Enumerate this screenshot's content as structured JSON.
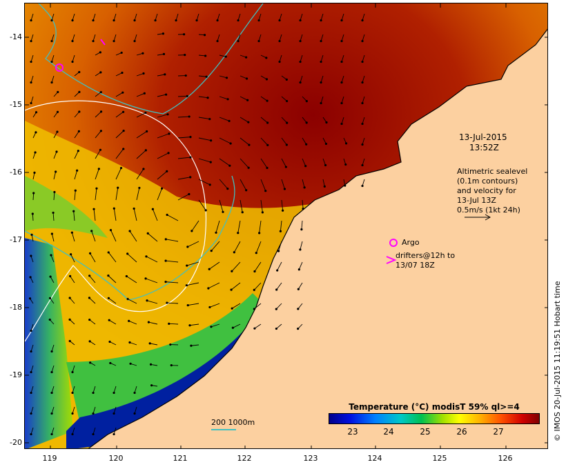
{
  "map": {
    "y_axis_labels": [
      "-14",
      "-15",
      "-16",
      "-17",
      "-18",
      "-19",
      "-20"
    ],
    "x_axis_labels": [
      "119",
      "120",
      "121",
      "122",
      "123",
      "124",
      "125",
      "126"
    ],
    "colors": {
      "land": "#fcd0a0",
      "coast": "#000000",
      "isobath": "#40c0c0",
      "contour": "#ffffff",
      "argo": "#ff00ff",
      "arrow": "#000000"
    }
  },
  "annotations": {
    "date": "13-Jul-2015",
    "time": "13:52Z",
    "altimetry_lines": [
      "Altimetric sealevel",
      "(0.1m contours)",
      "and velocity for",
      "13-Jul 13Z",
      "0.5m/s (1kt 24h)"
    ],
    "argo_label": "Argo",
    "drifters_lines": [
      "drifters@12h to",
      "13/07 18Z"
    ]
  },
  "legend": {
    "title": "Temperature (°C) modisT 59% ql>=4",
    "ticks": [
      "23",
      "24",
      "25",
      "26",
      "27"
    ]
  },
  "scale": {
    "label": "200  1000m"
  },
  "credit": "© IMOS 20-Jul-2015 11:19:51 Hobart time"
}
